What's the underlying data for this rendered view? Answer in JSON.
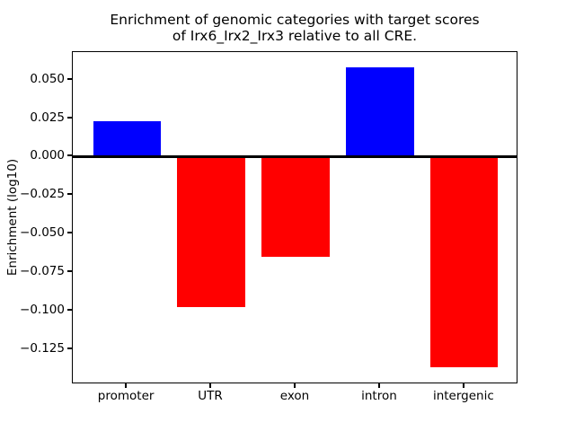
{
  "figure": {
    "title_line1": "Enrichment of genomic categories with target scores",
    "title_line2": "of Irx6_Irx2_Irx3 relative to all CRE.",
    "ylabel": "Enrichment (log10)",
    "background_color": "#ffffff",
    "axis_color": "#000000"
  },
  "chart_data": {
    "type": "bar",
    "title": "Enrichment of genomic categories with target scores of Irx6_Irx2_Irx3 relative to all CRE.",
    "xlabel": "",
    "ylabel": "Enrichment (log10)",
    "categories": [
      "promoter",
      "UTR",
      "exon",
      "intron",
      "intergenic"
    ],
    "values": [
      0.023,
      -0.098,
      -0.065,
      0.058,
      -0.137
    ],
    "bar_colors": [
      "#0000ff",
      "#ff0000",
      "#ff0000",
      "#0000ff",
      "#ff0000"
    ],
    "positive_color": "#0000ff",
    "negative_color": "#ff0000",
    "bar_width": 0.8,
    "ylim": [
      -0.148,
      0.068
    ],
    "xlim": [
      -0.64,
      4.64
    ],
    "yticks": [
      0.05,
      0.025,
      0.0,
      -0.025,
      -0.05,
      -0.075,
      -0.1,
      -0.125
    ],
    "zero_line": true,
    "grid": false,
    "legend_position": "none"
  }
}
